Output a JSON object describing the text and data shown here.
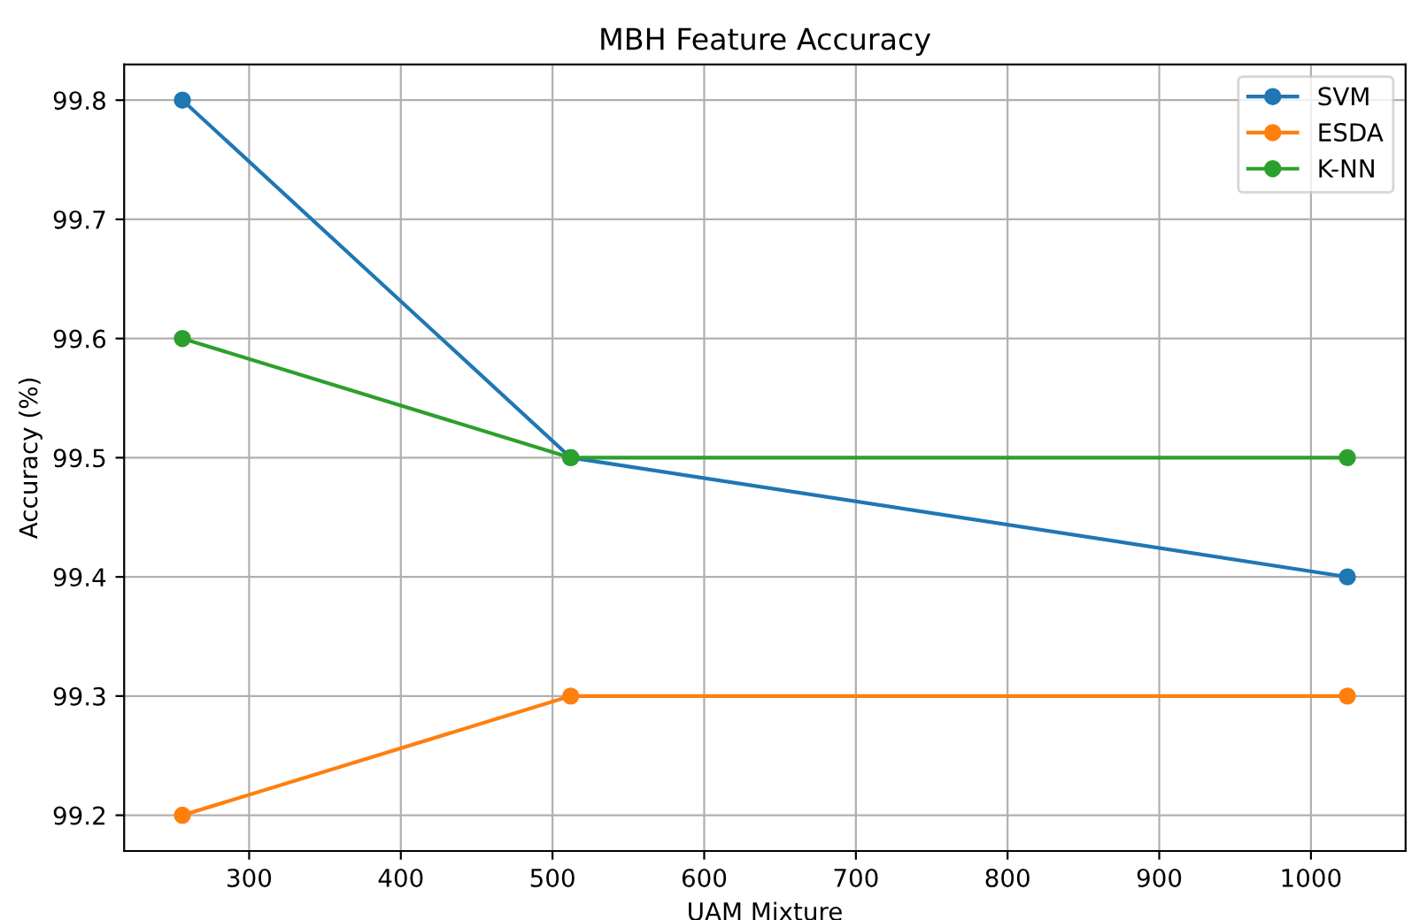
{
  "chart_data": {
    "type": "line",
    "title": "MBH Feature Accuracy",
    "xlabel": "UAM Mixture",
    "ylabel": "Accuracy (%)",
    "x": [
      256,
      512,
      1024
    ],
    "series": [
      {
        "name": "SVM",
        "color": "#1f77b4",
        "values": [
          99.8,
          99.5,
          99.4
        ]
      },
      {
        "name": "ESDA",
        "color": "#ff7f0e",
        "values": [
          99.2,
          99.3,
          99.3
        ]
      },
      {
        "name": "K-NN",
        "color": "#2ca02c",
        "values": [
          99.6,
          99.5,
          99.5
        ]
      }
    ],
    "xlim": [
      217.6,
      1062.4
    ],
    "xticks": [
      300,
      400,
      500,
      600,
      700,
      800,
      900,
      1000
    ],
    "ylim": [
      99.17,
      99.83
    ],
    "yticks": [
      99.2,
      99.3,
      99.4,
      99.5,
      99.6,
      99.7,
      99.8
    ],
    "grid": true,
    "legend": "top right",
    "marker": "circle",
    "line_style": "solid"
  }
}
